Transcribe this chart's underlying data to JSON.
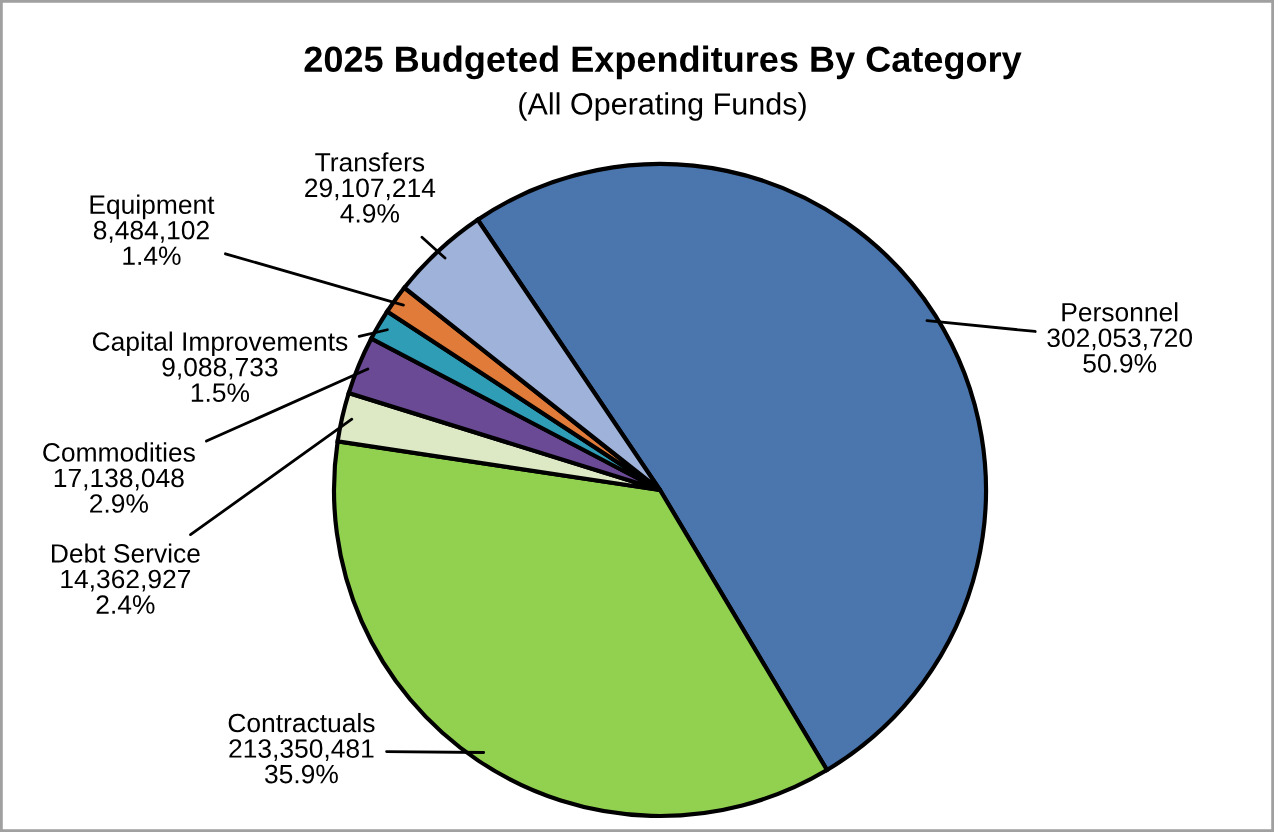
{
  "chart_data": {
    "type": "pie",
    "title": "2025 Budgeted Expenditures By Category",
    "subtitle": "(All Operating Funds)",
    "categories": [
      "Personnel",
      "Contractuals",
      "Debt Service",
      "Commodities",
      "Capital Improvements",
      "Equipment",
      "Transfers"
    ],
    "values": [
      302053720,
      213350481,
      14362927,
      17138048,
      9088733,
      8484102,
      29107214
    ],
    "value_labels": [
      "302,053,720\n50.9%",
      "213,350,481\n35.9%",
      "14,362,927\n2.4%",
      "17,138,048\n2.9%",
      "9,088,733\n1.5%",
      "8,484,102\n1.4%",
      "29,107,214\n4.9%"
    ],
    "colors": [
      "#4a75ad",
      "#92d050",
      "#dde8c4",
      "#6a4a94",
      "#2f9db5",
      "#e07b39",
      "#9fb2d9"
    ]
  }
}
